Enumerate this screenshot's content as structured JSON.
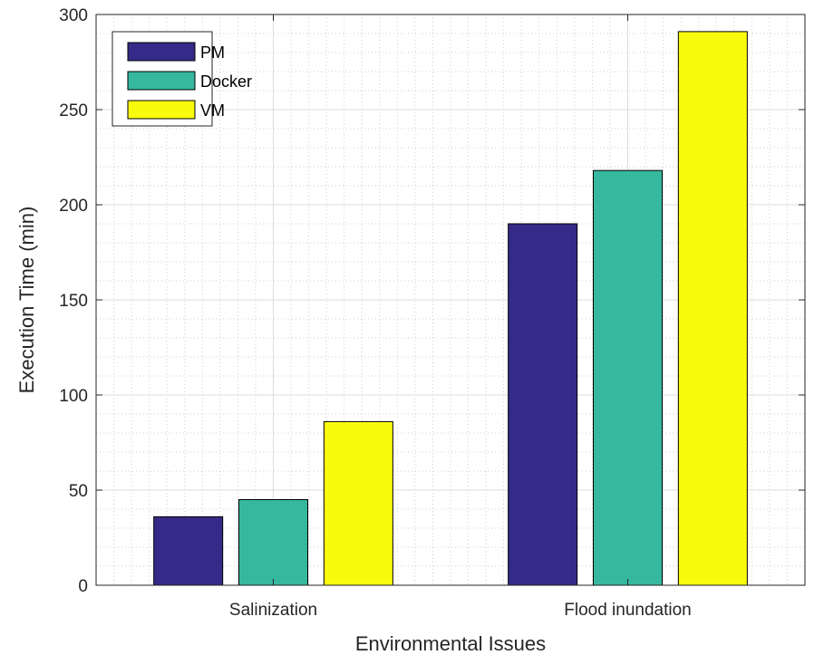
{
  "chart_data": {
    "type": "bar",
    "categories": [
      "Salinization",
      "Flood inundation"
    ],
    "series": [
      {
        "name": "PM",
        "values": [
          36,
          190
        ],
        "color": "#352a87"
      },
      {
        "name": "Docker",
        "values": [
          45,
          218
        ],
        "color": "#36b89e"
      },
      {
        "name": "VM",
        "values": [
          86,
          291
        ],
        "color": "#f9fb0e"
      }
    ],
    "xlabel": "Environmental Issues",
    "ylabel": "Execution Time (min)",
    "ylim": [
      0,
      300
    ],
    "yticks": [
      "0",
      "50",
      "100",
      "150",
      "200",
      "250",
      "300"
    ],
    "grid": true,
    "minor_grid": true,
    "legend_position": "top-left"
  }
}
